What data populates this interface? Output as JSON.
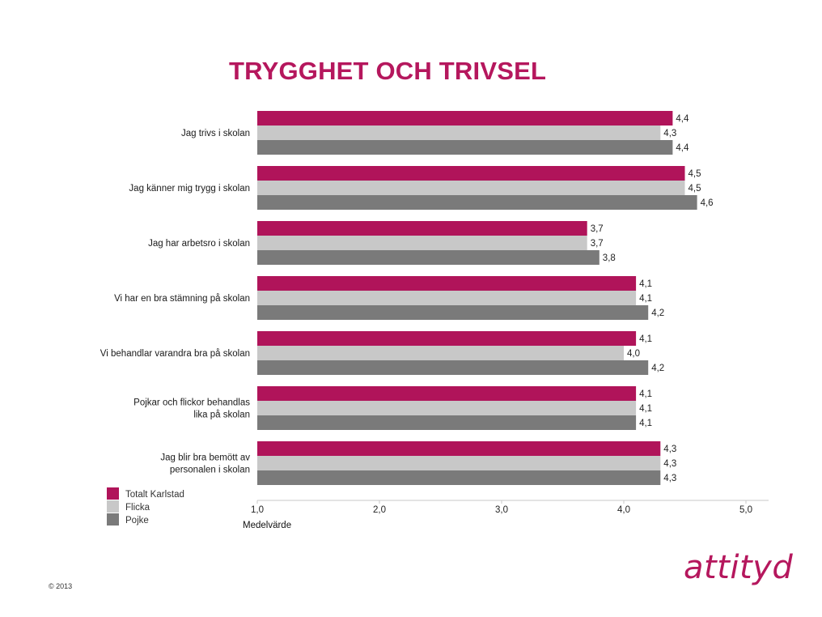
{
  "title": "TRYGGHET OCH TRIVSEL",
  "copyright": "© 2013",
  "logo_text": "attityd",
  "colors": {
    "accent": "#b5175d",
    "series": [
      "#b0145a",
      "#c8c8c8",
      "#7a7a7a"
    ]
  },
  "chart_data": {
    "type": "bar",
    "orientation": "horizontal",
    "categories": [
      [
        "Jag trivs i skolan"
      ],
      [
        "Jag känner mig trygg i skolan"
      ],
      [
        "Jag har arbetsro i skolan"
      ],
      [
        "Vi har en bra stämning på skolan"
      ],
      [
        "Vi behandlar varandra bra på skolan"
      ],
      [
        "Pojkar och flickor behandlas",
        "lika på skolan"
      ],
      [
        "Jag blir bra bemött av",
        "personalen i skolan"
      ]
    ],
    "series": [
      {
        "name": "Totalt Karlstad",
        "values": [
          4.4,
          4.5,
          3.7,
          4.1,
          4.1,
          4.1,
          4.3
        ],
        "labels": [
          "4,4",
          "4,5",
          "3,7",
          "4,1",
          "4,1",
          "4,1",
          "4,3"
        ]
      },
      {
        "name": "Flicka",
        "values": [
          4.3,
          4.5,
          3.7,
          4.1,
          4.0,
          4.1,
          4.3
        ],
        "labels": [
          "4,3",
          "4,5",
          "3,7",
          "4,1",
          "4,0",
          "4,1",
          "4,3"
        ]
      },
      {
        "name": "Pojke",
        "values": [
          4.4,
          4.6,
          3.8,
          4.2,
          4.2,
          4.1,
          4.3
        ],
        "labels": [
          "4,4",
          "4,6",
          "3,8",
          "4,2",
          "4,2",
          "4,1",
          "4,3"
        ]
      }
    ],
    "xlim": [
      1.0,
      5.0
    ],
    "xticks": [
      1.0,
      2.0,
      3.0,
      4.0,
      5.0
    ],
    "xtick_labels": [
      "1,0",
      "2,0",
      "3,0",
      "4,0",
      "5,0"
    ],
    "xlabel": "Medelvärde",
    "legend_position": "bottom-left",
    "grid": false
  }
}
